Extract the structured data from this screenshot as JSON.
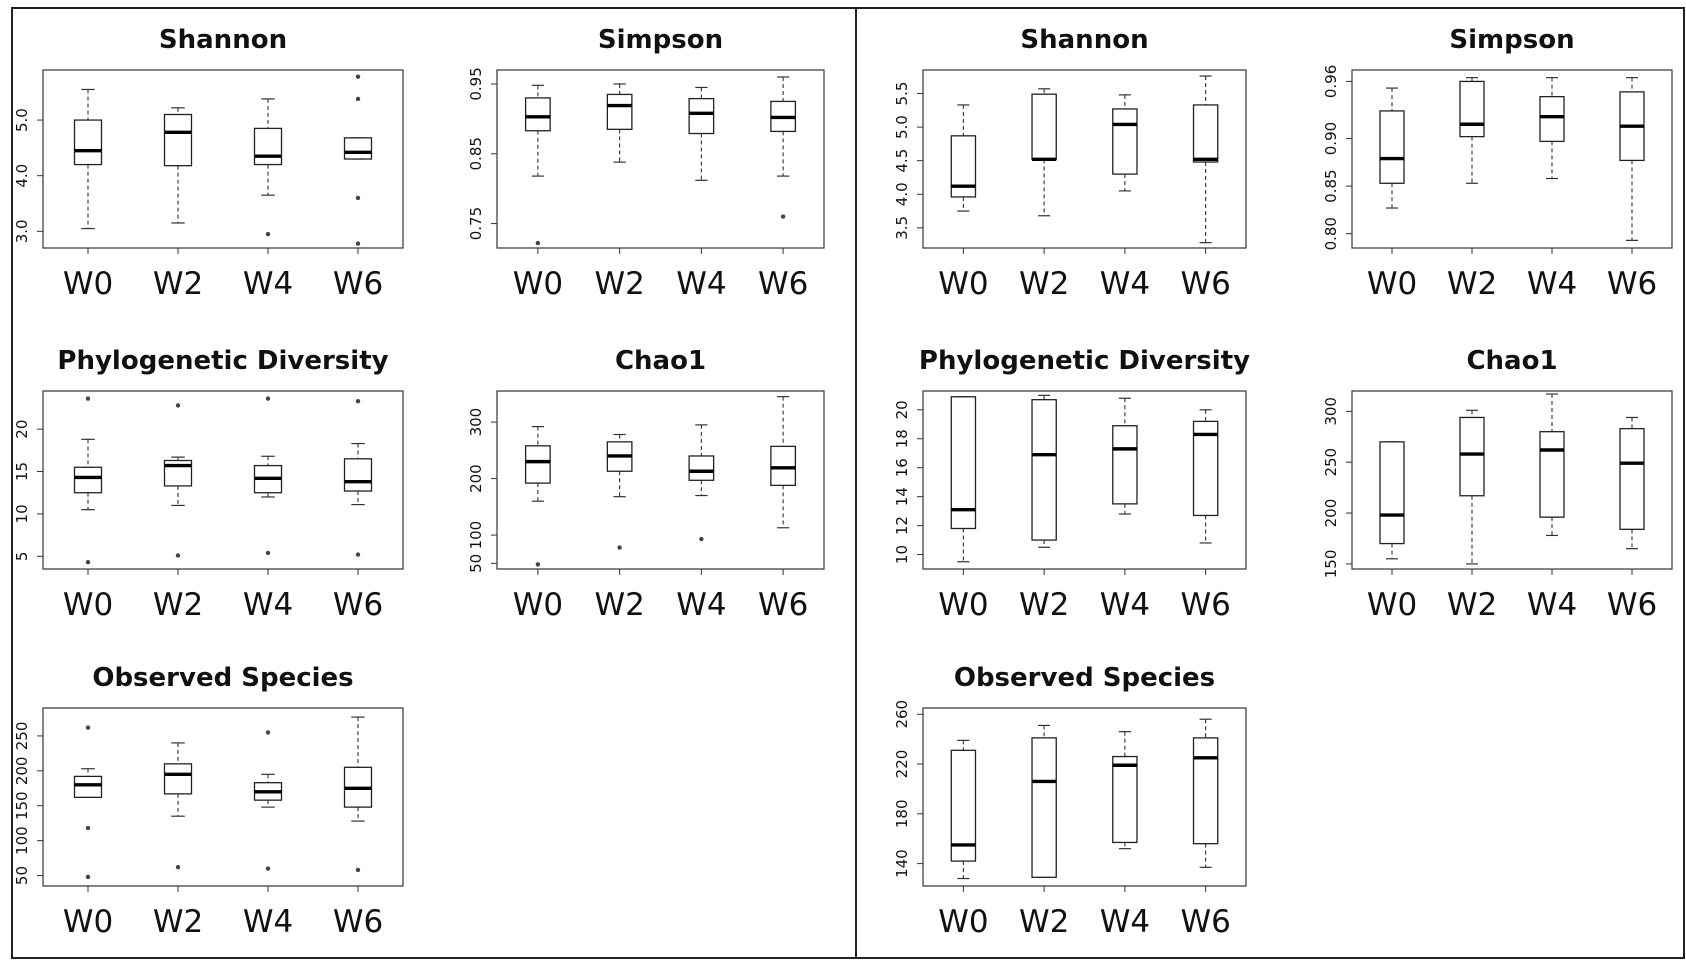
{
  "chart_data": [
    {
      "type": "boxplot",
      "group": "left",
      "title": "Shannon",
      "categories": [
        "W0",
        "W2",
        "W4",
        "W6"
      ],
      "ylim": [
        2.7,
        5.9
      ],
      "yticks": [
        3.0,
        4.0,
        5.0
      ],
      "ytick_labels": [
        "3.0",
        "4.0",
        "5.0"
      ],
      "boxes": [
        {
          "min": 3.05,
          "q1": 4.2,
          "median": 4.45,
          "q3": 5.0,
          "max": 5.55,
          "outliers": []
        },
        {
          "min": 3.15,
          "q1": 4.18,
          "median": 4.78,
          "q3": 5.1,
          "max": 5.22,
          "outliers": []
        },
        {
          "min": 3.65,
          "q1": 4.2,
          "median": 4.35,
          "q3": 4.85,
          "max": 5.38,
          "outliers": [
            2.95
          ]
        },
        {
          "min": 4.3,
          "q1": 4.3,
          "median": 4.42,
          "q3": 4.68,
          "max": 4.68,
          "outliers": [
            5.78,
            5.38,
            3.6,
            2.78
          ]
        }
      ]
    },
    {
      "type": "boxplot",
      "group": "left",
      "title": "Simpson",
      "categories": [
        "W0",
        "W2",
        "W4",
        "W6"
      ],
      "ylim": [
        0.715,
        0.97
      ],
      "yticks": [
        0.75,
        0.85,
        0.95
      ],
      "ytick_labels": [
        "0.75",
        "0.85",
        "0.95"
      ],
      "boxes": [
        {
          "min": 0.818,
          "q1": 0.883,
          "median": 0.903,
          "q3": 0.93,
          "max": 0.948,
          "outliers": [
            0.722
          ]
        },
        {
          "min": 0.838,
          "q1": 0.885,
          "median": 0.919,
          "q3": 0.935,
          "max": 0.95,
          "outliers": []
        },
        {
          "min": 0.812,
          "q1": 0.879,
          "median": 0.908,
          "q3": 0.929,
          "max": 0.945,
          "outliers": []
        },
        {
          "min": 0.818,
          "q1": 0.882,
          "median": 0.902,
          "q3": 0.925,
          "max": 0.96,
          "outliers": [
            0.76
          ]
        }
      ]
    },
    {
      "type": "boxplot",
      "group": "left",
      "title": "Phylogenetic Diversity",
      "categories": [
        "W0",
        "W2",
        "W4",
        "W6"
      ],
      "ylim": [
        3.5,
        24.5
      ],
      "yticks": [
        5,
        10,
        15,
        20
      ],
      "ytick_labels": [
        "5",
        "10",
        "15",
        "20"
      ],
      "boxes": [
        {
          "min": 10.5,
          "q1": 12.5,
          "median": 14.3,
          "q3": 15.5,
          "max": 18.8,
          "outliers": [
            23.6,
            4.3
          ]
        },
        {
          "min": 11.0,
          "q1": 13.3,
          "median": 15.7,
          "q3": 16.3,
          "max": 16.7,
          "outliers": [
            22.8,
            5.1
          ]
        },
        {
          "min": 12.0,
          "q1": 12.5,
          "median": 14.2,
          "q3": 15.7,
          "max": 16.8,
          "outliers": [
            23.6,
            5.4
          ]
        },
        {
          "min": 11.1,
          "q1": 12.7,
          "median": 13.8,
          "q3": 16.5,
          "max": 18.3,
          "outliers": [
            23.3,
            5.2
          ]
        }
      ]
    },
    {
      "type": "boxplot",
      "group": "left",
      "title": "Chao1",
      "categories": [
        "W0",
        "W2",
        "W4",
        "W6"
      ],
      "ylim": [
        40,
        355
      ],
      "yticks": [
        50,
        100,
        200,
        300
      ],
      "ytick_labels": [
        "50",
        "100",
        "200",
        "300"
      ],
      "boxes": [
        {
          "min": 160,
          "q1": 192,
          "median": 230,
          "q3": 258,
          "max": 292,
          "outliers": [
            48
          ]
        },
        {
          "min": 168,
          "q1": 213,
          "median": 240,
          "q3": 265,
          "max": 278,
          "outliers": [
            78
          ]
        },
        {
          "min": 170,
          "q1": 197,
          "median": 213,
          "q3": 240,
          "max": 295,
          "outliers": [
            93
          ]
        },
        {
          "min": 113,
          "q1": 188,
          "median": 219,
          "q3": 257,
          "max": 345,
          "outliers": []
        }
      ]
    },
    {
      "type": "boxplot",
      "group": "left",
      "title": "Observed Species",
      "categories": [
        "W0",
        "W2",
        "W4",
        "W6"
      ],
      "ylim": [
        35,
        290
      ],
      "yticks": [
        50,
        100,
        150,
        200,
        250
      ],
      "ytick_labels": [
        "50",
        "100",
        "150",
        "200",
        "250"
      ],
      "boxes": [
        {
          "min": 162,
          "q1": 162,
          "median": 180,
          "q3": 192,
          "max": 203,
          "outliers": [
            262,
            118,
            48
          ]
        },
        {
          "min": 135,
          "q1": 167,
          "median": 195,
          "q3": 210,
          "max": 240,
          "outliers": [
            62
          ]
        },
        {
          "min": 148,
          "q1": 158,
          "median": 170,
          "q3": 183,
          "max": 195,
          "outliers": [
            255,
            60
          ]
        },
        {
          "min": 128,
          "q1": 148,
          "median": 175,
          "q3": 205,
          "max": 277,
          "outliers": [
            58
          ]
        }
      ]
    },
    {
      "type": "boxplot",
      "group": "right",
      "title": "Shannon",
      "categories": [
        "W0",
        "W2",
        "W4",
        "W6"
      ],
      "ylim": [
        3.2,
        5.85
      ],
      "yticks": [
        3.5,
        4.0,
        4.5,
        5.0,
        5.5
      ],
      "ytick_labels": [
        "3.5",
        "4.0",
        "4.5",
        "5.0",
        "5.5"
      ],
      "boxes": [
        {
          "min": 3.75,
          "q1": 3.96,
          "median": 4.12,
          "q3": 4.87,
          "max": 5.33,
          "outliers": []
        },
        {
          "min": 3.68,
          "q1": 4.52,
          "median": 4.52,
          "q3": 5.49,
          "max": 5.57,
          "outliers": []
        },
        {
          "min": 4.05,
          "q1": 4.3,
          "median": 5.04,
          "q3": 5.27,
          "max": 5.48,
          "outliers": []
        },
        {
          "min": 3.28,
          "q1": 4.48,
          "median": 4.52,
          "q3": 5.33,
          "max": 5.76,
          "outliers": []
        }
      ]
    },
    {
      "type": "boxplot",
      "group": "right",
      "title": "Simpson",
      "categories": [
        "W0",
        "W2",
        "W4",
        "W6"
      ],
      "ylim": [
        0.785,
        0.972
      ],
      "yticks": [
        0.8,
        0.85,
        0.9,
        0.96
      ],
      "ytick_labels": [
        "0.80",
        "0.85",
        "0.90",
        "0.96"
      ],
      "boxes": [
        {
          "min": 0.827,
          "q1": 0.853,
          "median": 0.879,
          "q3": 0.929,
          "max": 0.953,
          "outliers": []
        },
        {
          "min": 0.853,
          "q1": 0.902,
          "median": 0.915,
          "q3": 0.96,
          "max": 0.964,
          "outliers": []
        },
        {
          "min": 0.858,
          "q1": 0.897,
          "median": 0.923,
          "q3": 0.944,
          "max": 0.964,
          "outliers": []
        },
        {
          "min": 0.793,
          "q1": 0.877,
          "median": 0.913,
          "q3": 0.949,
          "max": 0.964,
          "outliers": []
        }
      ]
    },
    {
      "type": "boxplot",
      "group": "right",
      "title": "Phylogenetic Diversity",
      "categories": [
        "W0",
        "W2",
        "W4",
        "W6"
      ],
      "ylim": [
        9.0,
        21.3
      ],
      "yticks": [
        10,
        12,
        14,
        16,
        18,
        20
      ],
      "ytick_labels": [
        "10",
        "12",
        "14",
        "16",
        "18",
        "20"
      ],
      "boxes": [
        {
          "min": 9.5,
          "q1": 11.8,
          "median": 13.1,
          "q3": 20.9,
          "max": 20.9,
          "outliers": []
        },
        {
          "min": 10.5,
          "q1": 11.0,
          "median": 16.9,
          "q3": 20.7,
          "max": 21.0,
          "outliers": []
        },
        {
          "min": 12.8,
          "q1": 13.5,
          "median": 17.3,
          "q3": 18.9,
          "max": 20.8,
          "outliers": []
        },
        {
          "min": 10.8,
          "q1": 12.7,
          "median": 18.3,
          "q3": 19.2,
          "max": 20.0,
          "outliers": []
        }
      ]
    },
    {
      "type": "boxplot",
      "group": "right",
      "title": "Chao1",
      "categories": [
        "W0",
        "W2",
        "W4",
        "W6"
      ],
      "ylim": [
        145,
        320
      ],
      "yticks": [
        150,
        200,
        250,
        300
      ],
      "ytick_labels": [
        "150",
        "200",
        "250",
        "300"
      ],
      "boxes": [
        {
          "min": 155,
          "q1": 170,
          "median": 198,
          "q3": 270,
          "max": 270,
          "outliers": []
        },
        {
          "min": 150,
          "q1": 217,
          "median": 258,
          "q3": 294,
          "max": 301,
          "outliers": []
        },
        {
          "min": 178,
          "q1": 196,
          "median": 262,
          "q3": 280,
          "max": 317,
          "outliers": []
        },
        {
          "min": 165,
          "q1": 184,
          "median": 249,
          "q3": 283,
          "max": 294,
          "outliers": []
        }
      ]
    },
    {
      "type": "boxplot",
      "group": "right",
      "title": "Observed Species",
      "categories": [
        "W0",
        "W2",
        "W4",
        "W6"
      ],
      "ylim": [
        122,
        265
      ],
      "yticks": [
        140,
        180,
        220,
        260
      ],
      "ytick_labels": [
        "140",
        "180",
        "220",
        "260"
      ],
      "boxes": [
        {
          "min": 128,
          "q1": 142,
          "median": 155,
          "q3": 231,
          "max": 239,
          "outliers": []
        },
        {
          "min": 129,
          "q1": 129,
          "median": 206,
          "q3": 241,
          "max": 251,
          "outliers": []
        },
        {
          "min": 152,
          "q1": 157,
          "median": 219,
          "q3": 226,
          "max": 246,
          "outliers": []
        },
        {
          "min": 137,
          "q1": 156,
          "median": 225,
          "q3": 241,
          "max": 256,
          "outliers": []
        }
      ]
    }
  ]
}
